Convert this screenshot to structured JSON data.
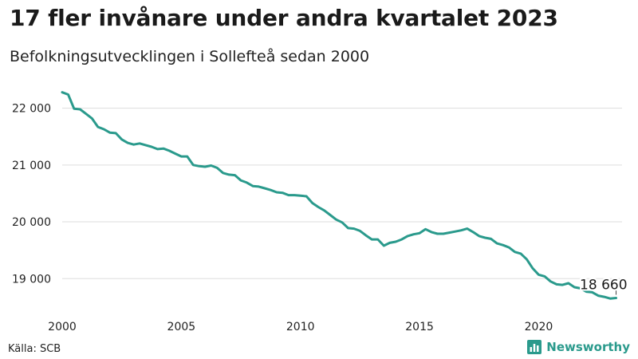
{
  "header": {
    "title": "17 fler invånare under andra kvartalet 2023",
    "subtitle": "Befolkningsutvecklingen i Sollefteå sedan 2000"
  },
  "footer": {
    "source": "Källa: SCB",
    "brand": "Newsworthy",
    "brand_icon": "bar-chart-logo-icon"
  },
  "colors": {
    "line": "#2a9a8c",
    "grid": "#dddddd",
    "brand": "#2a9a8c"
  },
  "chart_data": {
    "type": "line",
    "title": "17 fler invånare under andra kvartalet 2023",
    "subtitle": "Befolkningsutvecklingen i Sollefteå sedan 2000",
    "xlabel": "",
    "ylabel": "",
    "xlim": [
      2000,
      2023.5
    ],
    "ylim": [
      18400,
      22500
    ],
    "x_ticks": [
      2000,
      2005,
      2010,
      2015,
      2020
    ],
    "y_ticks": [
      19000,
      20000,
      21000,
      22000
    ],
    "y_tick_labels": [
      "19 000",
      "20 000",
      "21 000",
      "22 000"
    ],
    "grid": true,
    "end_label": "18 660",
    "series": [
      {
        "x": [
          2000.0,
          2000.25,
          2000.5,
          2000.75,
          2001.0,
          2001.25,
          2001.5,
          2001.75,
          2002.0,
          2002.25,
          2002.5,
          2002.75,
          2003.0,
          2003.25,
          2003.5,
          2003.75,
          2004.0,
          2004.25,
          2004.5,
          2004.75,
          2005.0,
          2005.25,
          2005.5,
          2005.75,
          2006.0,
          2006.25,
          2006.5,
          2006.75,
          2007.0,
          2007.25,
          2007.5,
          2007.75,
          2008.0,
          2008.25,
          2008.5,
          2008.75,
          2009.0,
          2009.25,
          2009.5,
          2009.75,
          2010.0,
          2010.25,
          2010.5,
          2010.75,
          2011.0,
          2011.25,
          2011.5,
          2011.75,
          2012.0,
          2012.25,
          2012.5,
          2012.75,
          2013.0,
          2013.25,
          2013.5,
          2013.75,
          2014.0,
          2014.25,
          2014.5,
          2014.75,
          2015.0,
          2015.25,
          2015.5,
          2015.75,
          2016.0,
          2016.25,
          2016.5,
          2016.75,
          2017.0,
          2017.25,
          2017.5,
          2017.75,
          2018.0,
          2018.25,
          2018.5,
          2018.75,
          2019.0,
          2019.25,
          2019.5,
          2019.75,
          2020.0,
          2020.25,
          2020.5,
          2020.75,
          2021.0,
          2021.25,
          2021.5,
          2021.75,
          2022.0,
          2022.25,
          2022.5,
          2022.75,
          2023.0,
          2023.25
        ],
        "values": [
          22280,
          22240,
          21990,
          21980,
          21900,
          21820,
          21670,
          21630,
          21570,
          21560,
          21450,
          21390,
          21360,
          21380,
          21350,
          21320,
          21280,
          21290,
          21250,
          21200,
          21150,
          21150,
          21000,
          20980,
          20970,
          20990,
          20950,
          20860,
          20830,
          20820,
          20730,
          20690,
          20630,
          20620,
          20590,
          20560,
          20520,
          20510,
          20470,
          20470,
          20460,
          20450,
          20330,
          20260,
          20200,
          20120,
          20040,
          19990,
          19890,
          19880,
          19840,
          19760,
          19690,
          19690,
          19580,
          19630,
          19650,
          19690,
          19750,
          19780,
          19800,
          19870,
          19820,
          19790,
          19790,
          19810,
          19830,
          19850,
          19880,
          19820,
          19750,
          19720,
          19700,
          19620,
          19590,
          19550,
          19470,
          19440,
          19340,
          19180,
          19070,
          19040,
          18950,
          18900,
          18890,
          18920,
          18850,
          18830,
          18770,
          18760,
          18700,
          18680,
          18650,
          18660
        ]
      }
    ]
  }
}
